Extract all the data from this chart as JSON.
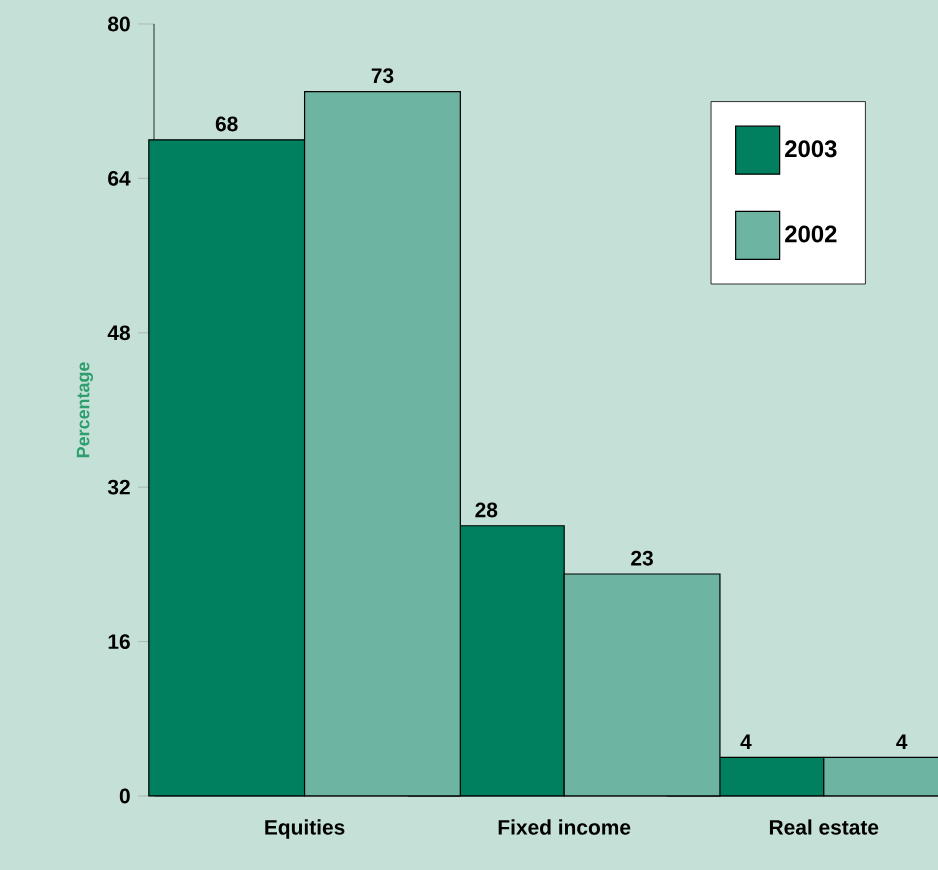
{
  "chart_data": {
    "type": "bar",
    "ylabel": "Percentage",
    "categories": [
      "Equities",
      "Fixed income",
      "Real estate"
    ],
    "series": [
      {
        "name": "2003",
        "color": "#00805f",
        "values": [
          68,
          28,
          4
        ]
      },
      {
        "name": "2002",
        "color": "#6db5a2",
        "values": [
          73,
          23,
          4
        ]
      }
    ],
    "ylim": [
      0,
      80
    ],
    "yticks": [
      0,
      16,
      32,
      48,
      64,
      80
    ],
    "data_labels": true,
    "legend": "top right",
    "grid": false
  }
}
